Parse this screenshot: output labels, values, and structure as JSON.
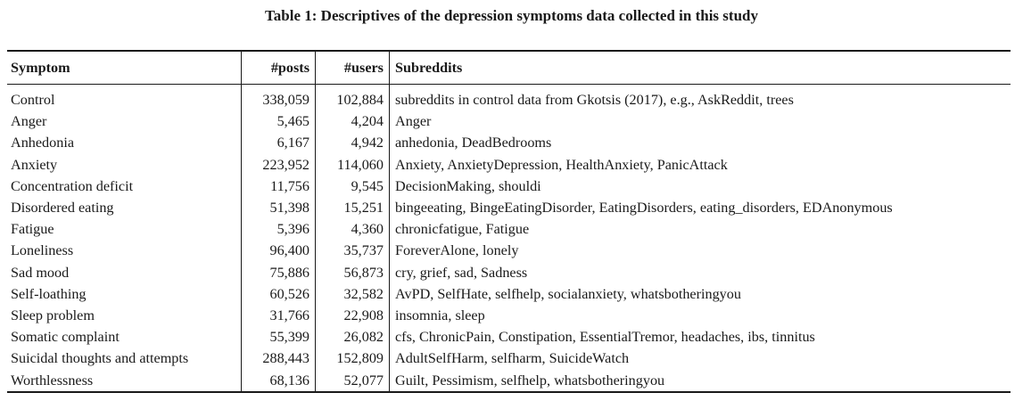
{
  "caption": "Table 1: Descriptives of the depression symptoms data collected in this study",
  "table": {
    "headers": [
      "Symptom",
      "#posts",
      "#users",
      "Subreddits"
    ],
    "rows": [
      [
        "Control",
        "338,059",
        "102,884",
        "subreddits in control data from Gkotsis (2017), e.g., AskReddit, trees"
      ],
      [
        "Anger",
        "5,465",
        "4,204",
        "Anger"
      ],
      [
        "Anhedonia",
        "6,167",
        "4,942",
        "anhedonia, DeadBedrooms"
      ],
      [
        "Anxiety",
        "223,952",
        "114,060",
        "Anxiety, AnxietyDepression, HealthAnxiety, PanicAttack"
      ],
      [
        "Concentration deficit",
        "11,756",
        "9,545",
        "DecisionMaking, shouldi"
      ],
      [
        "Disordered eating",
        "51,398",
        "15,251",
        "bingeeating, BingeEatingDisorder, EatingDisorders, eating_disorders, EDAnonymous"
      ],
      [
        "Fatigue",
        "5,396",
        "4,360",
        "chronicfatigue, Fatigue"
      ],
      [
        "Loneliness",
        "96,400",
        "35,737",
        "ForeverAlone, lonely"
      ],
      [
        "Sad mood",
        "75,886",
        "56,873",
        "cry, grief, sad, Sadness"
      ],
      [
        "Self-loathing",
        "60,526",
        "32,582",
        "AvPD, SelfHate, selfhelp, socialanxiety, whatsbotheringyou"
      ],
      [
        "Sleep problem",
        "31,766",
        "22,908",
        "insomnia, sleep"
      ],
      [
        "Somatic complaint",
        "55,399",
        "26,082",
        "cfs, ChronicPain, Constipation, EssentialTremor, headaches, ibs, tinnitus"
      ],
      [
        "Suicidal thoughts and attempts",
        "288,443",
        "152,809",
        "AdultSelfHarm, selfharm, SuicideWatch"
      ],
      [
        "Worthlessness",
        "68,136",
        "52,077",
        "Guilt, Pessimism, selfhelp, whatsbotheringyou"
      ]
    ]
  }
}
